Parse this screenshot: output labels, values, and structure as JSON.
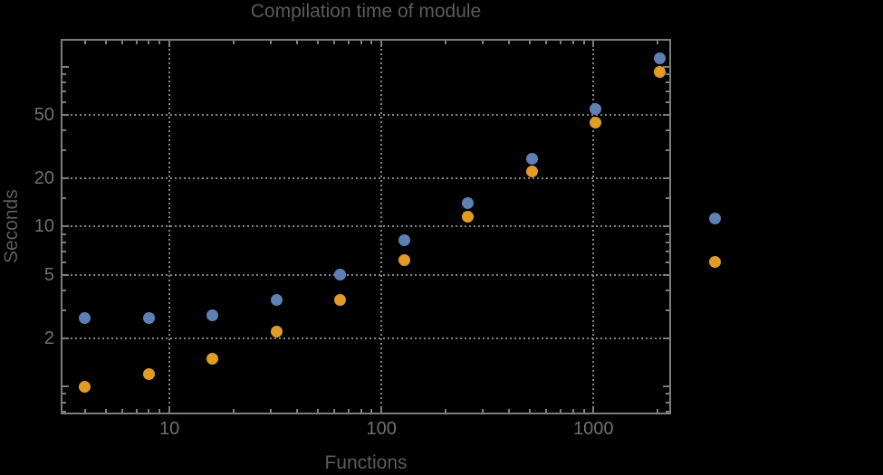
{
  "title": "Compilation time of module",
  "colors": {
    "background": "#000000",
    "frame": "#7c7c7c",
    "grid": "#828282",
    "title_text": "#5c5c5c",
    "axis_label_text": "#5c5c5c",
    "tick_label_text": "#707070",
    "series_blue": "#5E81B5",
    "series_orange": "#E19C24"
  },
  "chart_data": {
    "type": "scatter",
    "title": "Compilation time of module",
    "xlabel": "Functions",
    "ylabel": "Seconds",
    "xscale": "log",
    "yscale": "log",
    "xlim": [
      3.1,
      2300
    ],
    "ylim": [
      0.68,
      147
    ],
    "grid": "dotted",
    "x": [
      4,
      8,
      16,
      32,
      64,
      128,
      256,
      512,
      1024,
      2048
    ],
    "series": [
      {
        "name": "series-blue",
        "color": "#5E81B5",
        "values": [
          2.7,
          2.7,
          2.8,
          3.5,
          5.0,
          8.2,
          14.0,
          26.5,
          54.0,
          113.0
        ]
      },
      {
        "name": "series-orange",
        "color": "#E19C24",
        "values": [
          1.0,
          1.2,
          1.5,
          2.2,
          3.5,
          6.2,
          11.6,
          22.0,
          44.5,
          93.0
        ]
      }
    ],
    "x_ticks_labeled": [
      10,
      100,
      1000
    ],
    "x_tick_labels": [
      "10",
      "100",
      "1000"
    ],
    "x_ticks_minor": [
      4,
      5,
      6,
      7,
      8,
      9,
      20,
      30,
      40,
      50,
      60,
      70,
      80,
      90,
      200,
      300,
      400,
      500,
      600,
      700,
      800,
      900,
      2000
    ],
    "y_ticks_labeled": [
      2,
      5,
      10,
      20,
      50
    ],
    "y_tick_labels": [
      "2",
      "5",
      "10",
      "20",
      "50"
    ],
    "y_ticks_major_unlabeled": [
      1,
      100
    ],
    "y_ticks_minor": [
      0.7,
      0.8,
      0.9,
      3,
      4,
      6,
      7,
      8,
      9,
      15,
      30,
      40,
      60,
      70,
      80,
      90
    ],
    "gridlines_x": [
      10,
      100,
      1000
    ],
    "gridlines_y": [
      2,
      5,
      10,
      20,
      50
    ],
    "legend_position": "right",
    "legend_markers": [
      {
        "name": "legend-marker-blue",
        "color": "#5E81B5"
      },
      {
        "name": "legend-marker-orange",
        "color": "#E19C24"
      }
    ]
  }
}
